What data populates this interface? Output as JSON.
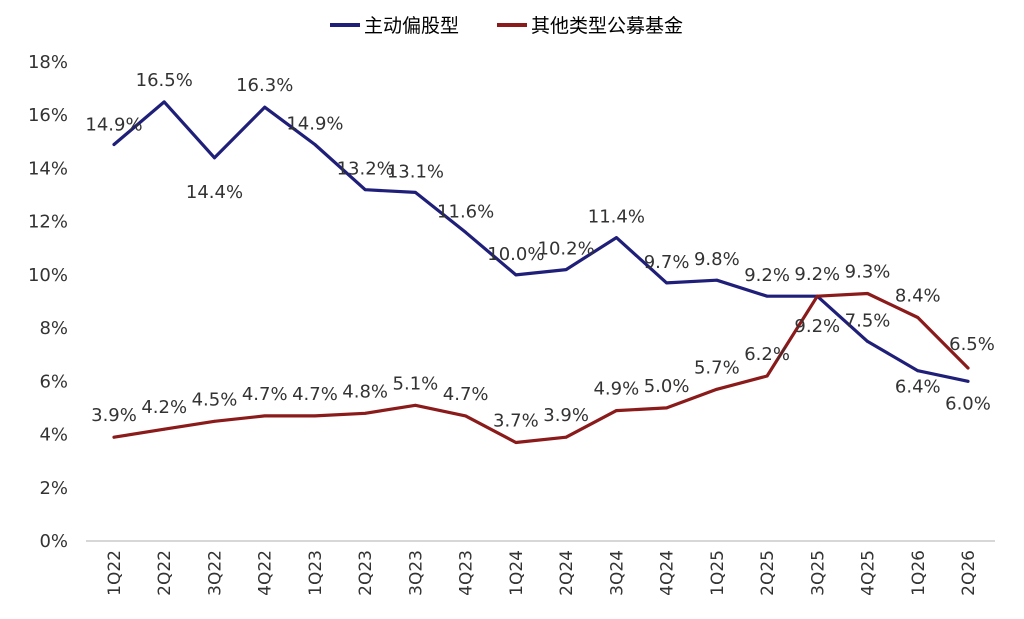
{
  "chart_data": {
    "type": "line",
    "categories": [
      "1Q22",
      "2Q22",
      "3Q22",
      "4Q22",
      "1Q23",
      "2Q23",
      "3Q23",
      "4Q23",
      "1Q24",
      "2Q24",
      "3Q24",
      "4Q24",
      "1Q25",
      "2Q25",
      "3Q25",
      "4Q25",
      "1Q26",
      "2Q26"
    ],
    "series": [
      {
        "name": "主动偏股型",
        "color": "#1f1f7a",
        "values": [
          14.9,
          16.5,
          14.4,
          16.3,
          14.9,
          13.2,
          13.1,
          11.6,
          10.0,
          10.2,
          11.4,
          9.7,
          9.8,
          9.2,
          9.2,
          7.5,
          6.4,
          6.0
        ],
        "labels": [
          "14.9%",
          "16.5%",
          "14.4%",
          "16.3%",
          "14.9%",
          "13.2%",
          "13.1%",
          "11.6%",
          "10.0%",
          "10.2%",
          "11.4%",
          "9.7%",
          "9.8%",
          "9.2%",
          "9.2%",
          "7.5%",
          "6.4%",
          "6.0%"
        ]
      },
      {
        "name": "其他类型公募基金",
        "color": "#8b1a1a",
        "values": [
          3.9,
          4.2,
          4.5,
          4.7,
          4.7,
          4.8,
          5.1,
          4.7,
          3.7,
          3.9,
          4.9,
          5.0,
          5.7,
          6.2,
          9.2,
          9.3,
          8.4,
          6.5
        ],
        "labels": [
          "3.9%",
          "4.2%",
          "4.5%",
          "4.7%",
          "4.7%",
          "4.8%",
          "5.1%",
          "4.7%",
          "3.7%",
          "3.9%",
          "4.9%",
          "5.0%",
          "5.7%",
          "6.2%",
          "9.2%",
          "9.3%",
          "8.4%",
          "6.5%"
        ]
      }
    ],
    "ylim": [
      0,
      18
    ],
    "yticks": [
      "0%",
      "2%",
      "4%",
      "6%",
      "8%",
      "10%",
      "12%",
      "14%",
      "16%",
      "18%"
    ],
    "grid": false,
    "legend": "top-center",
    "title": "",
    "xlabel": "",
    "ylabel": ""
  }
}
